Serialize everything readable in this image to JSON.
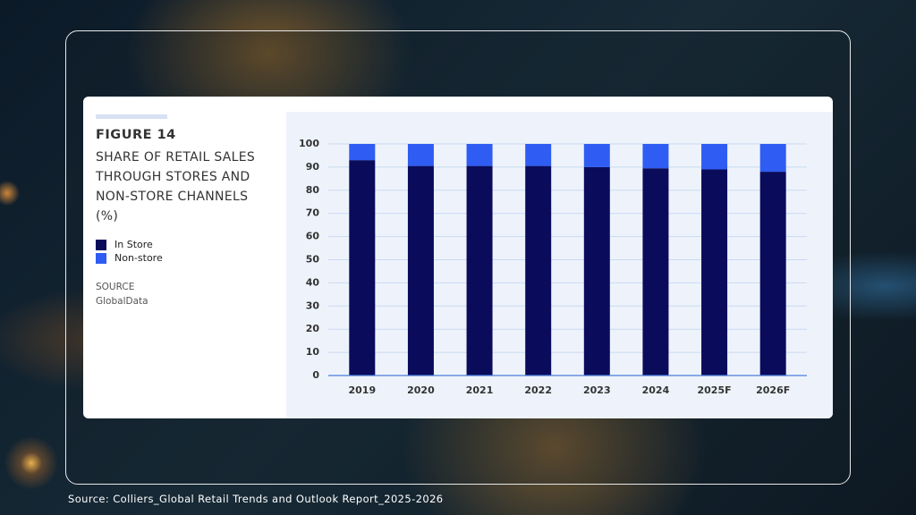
{
  "chart_data": {
    "type": "stacked-bar",
    "figure_label": "FIGURE 14",
    "title": "SHARE OF RETAIL SALES THROUGH STORES AND NON-STORE CHANNELS (%)",
    "source_label": "SOURCE",
    "source": "GlobalData",
    "categories": [
      "2019",
      "2020",
      "2021",
      "2022",
      "2023",
      "2024",
      "2025F",
      "2026F"
    ],
    "series": [
      {
        "name": "In Store",
        "color": "#0b0b5c",
        "values": [
          93,
          90.5,
          90.5,
          90.5,
          90,
          89.5,
          89,
          88
        ]
      },
      {
        "name": "Non-store",
        "color": "#2f5cf2",
        "values": [
          7,
          9.5,
          9.5,
          9.5,
          10,
          10.5,
          11,
          12
        ]
      }
    ],
    "ylim": [
      0,
      100
    ],
    "yticks": [
      0,
      10,
      20,
      30,
      40,
      50,
      60,
      70,
      80,
      90,
      100
    ],
    "grid": true
  },
  "footer": "Source: Colliers_Global Retail Trends and Outlook Report_2025-2026"
}
